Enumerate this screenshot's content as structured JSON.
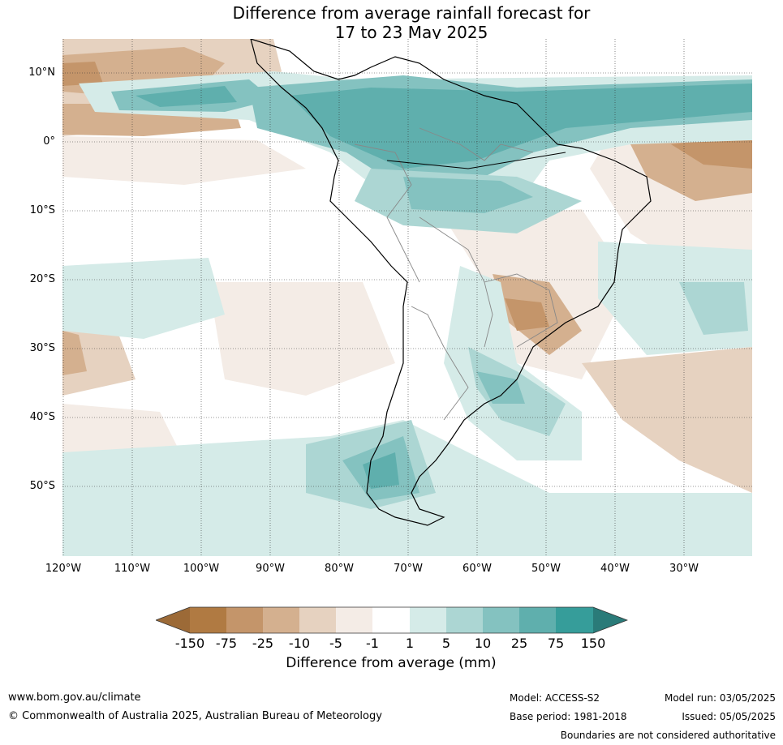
{
  "title": {
    "line1": "Difference from average rainfall forecast for",
    "line2": "17 to 23 May 2025"
  },
  "map": {
    "lat_labels": [
      "10°N",
      "0°",
      "10°S",
      "20°S",
      "30°S",
      "40°S",
      "50°S"
    ],
    "lon_labels": [
      "120°W",
      "110°W",
      "100°W",
      "90°W",
      "80°W",
      "70°W",
      "60°W",
      "50°W",
      "40°W",
      "30°W"
    ]
  },
  "colorbar": {
    "title": "Difference from average (mm)",
    "ticks": [
      "-150",
      "-75",
      "-25",
      "-10",
      "-5",
      "-1",
      "1",
      "5",
      "10",
      "25",
      "75",
      "150"
    ],
    "colors": [
      "#9c6a37",
      "#b07a42",
      "#c4956a",
      "#d4b08f",
      "#e6d2c0",
      "#f4ece6",
      "#ffffff",
      "#d5ebe8",
      "#acd6d3",
      "#84c2c0",
      "#5fafad",
      "#369d9a",
      "#2a7b79"
    ]
  },
  "footer": {
    "url": "www.bom.gov.au/climate",
    "copyright": "© Commonwealth of Australia 2025, Australian Bureau of Meteorology",
    "model": "Model: ACCESS-S2",
    "base_period": "Base period: 1981-2018",
    "model_run": "Model run: 03/05/2025",
    "issued": "Issued: 05/05/2025",
    "boundaries": "Boundaries are not considered authoritative"
  }
}
